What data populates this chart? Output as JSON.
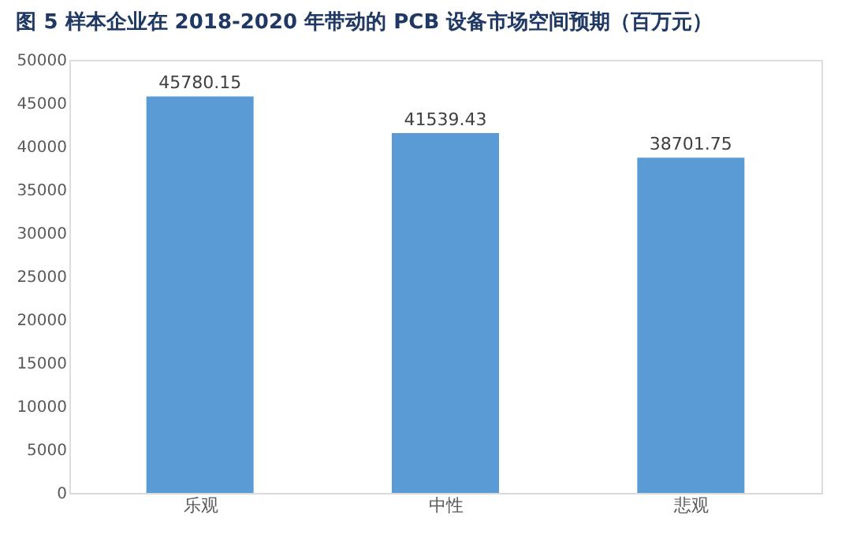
{
  "chart_data": {
    "type": "bar",
    "title": "图 5 样本企业在 2018-2020 年带动的 PCB 设备市场空间预期（百万元）",
    "categories": [
      "乐观",
      "中性",
      "悲观"
    ],
    "values": [
      45780.15,
      41539.43,
      38701.75
    ],
    "color": "#5b9bd5",
    "ylim": [
      0,
      50000
    ],
    "yticks": [
      0,
      5000,
      10000,
      15000,
      20000,
      25000,
      30000,
      35000,
      40000,
      45000,
      50000
    ],
    "data_labels": true,
    "grid": false
  }
}
